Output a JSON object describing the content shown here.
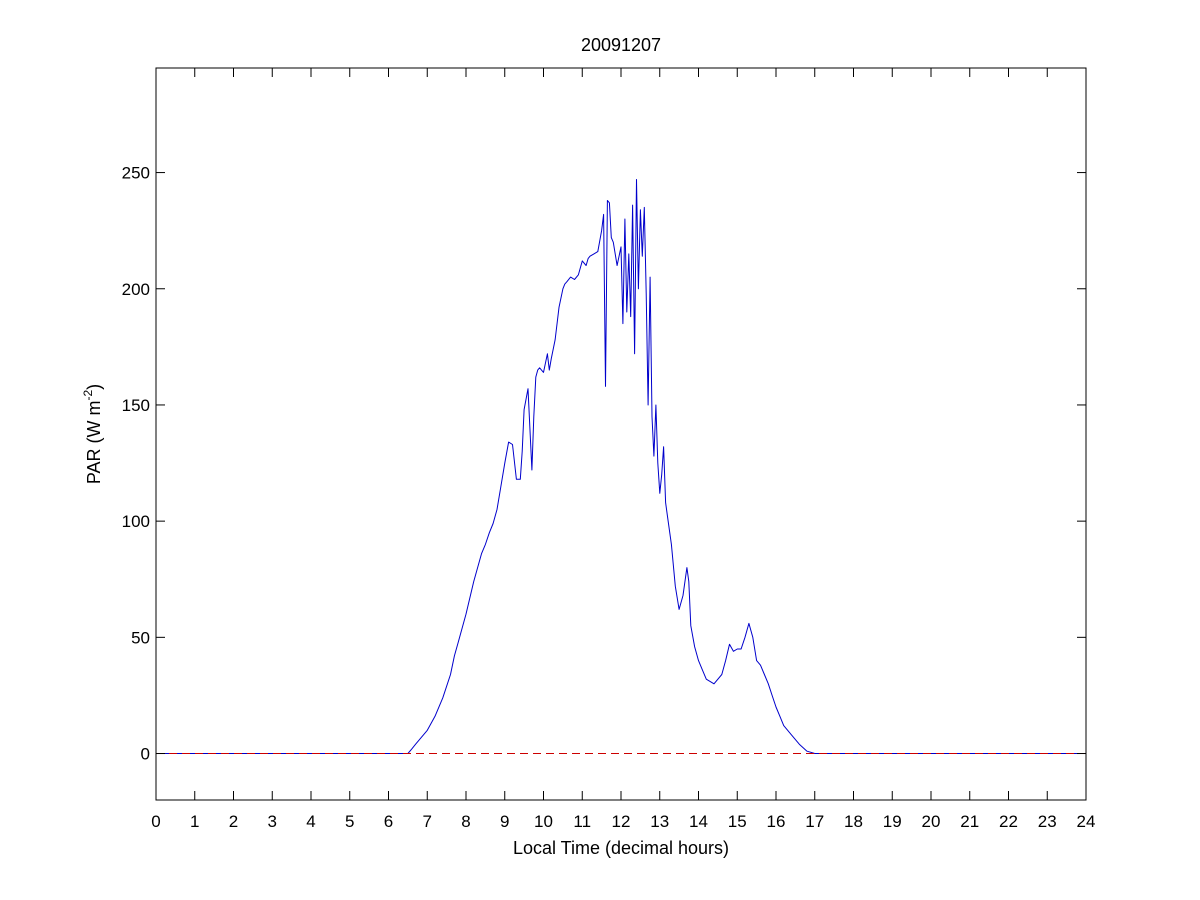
{
  "chart_data": {
    "type": "line",
    "title": "20091207",
    "xlabel": "Local Time (decimal hours)",
    "ylabel": {
      "prefix": "PAR (W m",
      "superscript": "-2",
      "suffix": ")"
    },
    "xlim": [
      0,
      24
    ],
    "ylim": [
      -20,
      295
    ],
    "xticks": [
      0,
      1,
      2,
      3,
      4,
      5,
      6,
      7,
      8,
      9,
      10,
      11,
      12,
      13,
      14,
      15,
      16,
      17,
      18,
      19,
      20,
      21,
      22,
      23,
      24
    ],
    "xtick_labels": [
      "0",
      "1",
      "2",
      "3",
      "4",
      "5",
      "6",
      "7",
      "8",
      "9",
      "10",
      "11",
      "12",
      "13",
      "14",
      "15",
      "16",
      "17",
      "18",
      "19",
      "20",
      "21",
      "22",
      "23",
      "24"
    ],
    "yticks": [
      0,
      50,
      100,
      150,
      200,
      250
    ],
    "ytick_labels": [
      "0",
      "50",
      "100",
      "150",
      "200",
      "250"
    ],
    "grid": false,
    "series": [
      {
        "style": "solid",
        "color": "#0000cc",
        "x": [
          0,
          6.5,
          6.6,
          6.7,
          6.8,
          7,
          7.2,
          7.4,
          7.6,
          7.7,
          7.8,
          8,
          8.2,
          8.4,
          8.5,
          8.6,
          8.7,
          8.8,
          8.9,
          9,
          9.1,
          9.2,
          9.3,
          9.4,
          9.45,
          9.5,
          9.6,
          9.7,
          9.75,
          9.8,
          9.85,
          9.9,
          10,
          10.1,
          10.15,
          10.2,
          10.3,
          10.4,
          10.5,
          10.55,
          10.6,
          10.7,
          10.8,
          10.9,
          11,
          11.1,
          11.15,
          11.2,
          11.3,
          11.4,
          11.5,
          11.55,
          11.6,
          11.65,
          11.7,
          11.75,
          11.8,
          11.9,
          12,
          12.05,
          12.1,
          12.15,
          12.2,
          12.25,
          12.3,
          12.35,
          12.4,
          12.45,
          12.5,
          12.55,
          12.6,
          12.65,
          12.7,
          12.75,
          12.8,
          12.85,
          12.9,
          12.95,
          13,
          13.05,
          13.1,
          13.15,
          13.2,
          13.3,
          13.4,
          13.5,
          13.6,
          13.7,
          13.75,
          13.8,
          13.9,
          14,
          14.1,
          14.2,
          14.4,
          14.6,
          14.7,
          14.8,
          14.9,
          15,
          15.1,
          15.2,
          15.3,
          15.4,
          15.5,
          15.6,
          15.7,
          15.8,
          15.9,
          16,
          16.1,
          16.2,
          16.4,
          16.6,
          16.8,
          17,
          17.2,
          24
        ],
        "y": [
          0,
          0,
          2,
          4,
          6,
          10,
          16,
          24,
          34,
          42,
          48,
          60,
          74,
          86,
          90,
          95,
          99,
          105,
          115,
          125,
          134,
          133,
          118,
          118,
          130,
          148,
          157,
          122,
          145,
          162,
          165,
          166,
          164,
          172,
          165,
          170,
          178,
          192,
          200,
          202,
          203,
          205,
          204,
          206,
          212,
          210,
          213,
          214,
          215,
          216,
          225,
          232,
          158,
          238,
          237,
          222,
          220,
          210,
          218,
          185,
          230,
          190,
          215,
          188,
          236,
          172,
          247,
          200,
          234,
          214,
          235,
          198,
          150,
          205,
          145,
          128,
          150,
          125,
          112,
          120,
          132,
          108,
          102,
          90,
          72,
          62,
          68,
          80,
          74,
          55,
          46,
          40,
          36,
          32,
          30,
          34,
          40,
          47,
          44,
          45,
          45,
          50,
          56,
          50,
          40,
          38,
          34,
          30,
          25,
          20,
          16,
          12,
          8,
          4,
          1,
          0,
          0,
          0
        ]
      },
      {
        "style": "dashed",
        "color": "#cc0000",
        "x": [
          0,
          24
        ],
        "y": [
          0,
          0
        ]
      }
    ]
  }
}
